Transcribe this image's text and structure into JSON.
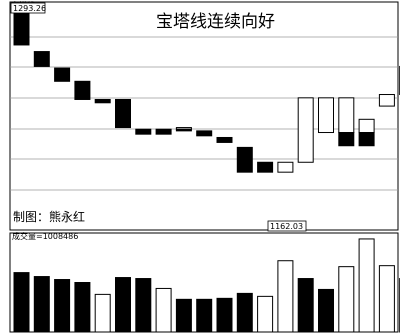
{
  "chart_data": {
    "type": "candlestick",
    "title": "宝塔线连续向好",
    "credit": "制图：熊永红",
    "indicator_label": "宝塔线",
    "high_label": "1293.26",
    "low_label": "1162.03",
    "volume_label": "成交量=1008486",
    "price_range": [
      1158,
      1296
    ],
    "volume_range": [
      0,
      100
    ],
    "grid": true,
    "colors": {
      "up": "#ffffff",
      "down": "#000000",
      "grid": "#9a9a9a",
      "frame": "#000000"
    },
    "bars": [
      {
        "top": 1290.0,
        "bottom": 1270.0,
        "color": "black"
      },
      {
        "top": 1266.0,
        "bottom": 1257.0,
        "color": "black"
      },
      {
        "top": 1256.0,
        "bottom": 1248.0,
        "color": "black"
      },
      {
        "top": 1248.0,
        "bottom": 1237.0,
        "color": "black"
      },
      {
        "top": 1237.0,
        "bottom": 1235.0,
        "color": "black"
      },
      {
        "top": 1237.0,
        "bottom": 1220.0,
        "color": "black"
      },
      {
        "top": 1219.0,
        "bottom": 1216.0,
        "color": "black"
      },
      {
        "top": 1219.0,
        "bottom": 1216.0,
        "color": "black"
      },
      {
        "top": 1220.0,
        "bottom": 1218.0,
        "color": "split",
        "split": 1219.0
      },
      {
        "top": 1218.0,
        "bottom": 1215.0,
        "color": "black"
      },
      {
        "top": 1214.0,
        "bottom": 1211.0,
        "color": "black"
      },
      {
        "top": 1208.0,
        "bottom": 1193.0,
        "color": "black"
      },
      {
        "top": 1199.0,
        "bottom": 1193.0,
        "color": "black"
      },
      {
        "top": 1199.0,
        "bottom": 1193.0,
        "color": "white"
      },
      {
        "top": 1238.0,
        "bottom": 1199.0,
        "color": "white"
      },
      {
        "top": 1238.0,
        "bottom": 1217.0,
        "color": "white"
      },
      {
        "top": 1238.0,
        "bottom": 1209.0,
        "color": "split",
        "split": 1217.0
      },
      {
        "top": 1225.0,
        "bottom": 1209.0,
        "color": "split",
        "split": 1217.0
      },
      {
        "top": 1240.0,
        "bottom": 1233.0,
        "color": "white"
      },
      {
        "top": 1257.0,
        "bottom": 1240.0,
        "color": "white"
      }
    ],
    "volume": [
      {
        "value": 60,
        "color": "black"
      },
      {
        "value": 56,
        "color": "black"
      },
      {
        "value": 53,
        "color": "black"
      },
      {
        "value": 50,
        "color": "black"
      },
      {
        "value": 38,
        "color": "white"
      },
      {
        "value": 55,
        "color": "black"
      },
      {
        "value": 54,
        "color": "black"
      },
      {
        "value": 44,
        "color": "white"
      },
      {
        "value": 33,
        "color": "black"
      },
      {
        "value": 33,
        "color": "black"
      },
      {
        "value": 34,
        "color": "black"
      },
      {
        "value": 39,
        "color": "black"
      },
      {
        "value": 36,
        "color": "white"
      },
      {
        "value": 72,
        "color": "white"
      },
      {
        "value": 54,
        "color": "black"
      },
      {
        "value": 43,
        "color": "black"
      },
      {
        "value": 66,
        "color": "white"
      },
      {
        "value": 94,
        "color": "white"
      },
      {
        "value": 67,
        "color": "white"
      },
      {
        "value": 54,
        "color": "white"
      }
    ]
  }
}
